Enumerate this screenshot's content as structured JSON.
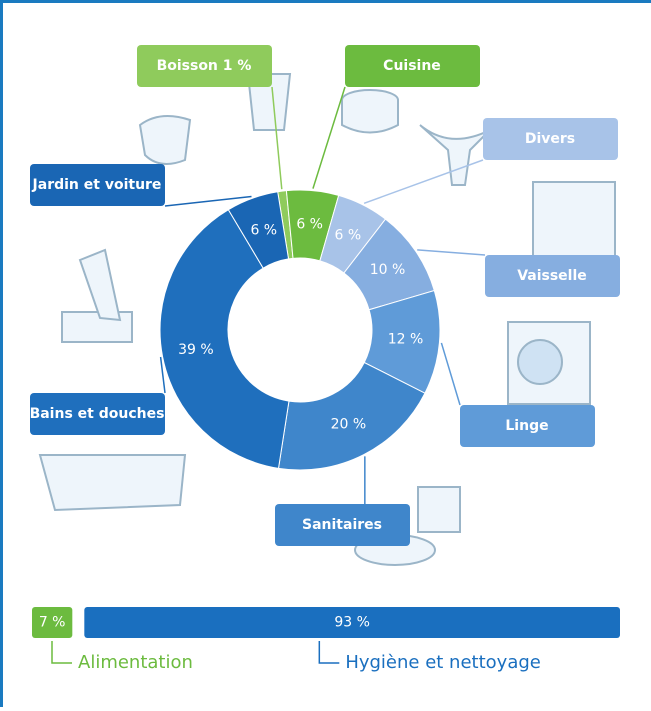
{
  "chart_data": [
    {
      "type": "donut",
      "categories": [
        "Boisson 1 %",
        "Cuisine",
        "Divers",
        "Vaisselle",
        "Linge",
        "Sanitaires",
        "Bains et douches",
        "Jardin et voiture"
      ],
      "values": [
        1,
        6,
        6,
        10,
        12,
        20,
        39,
        6
      ],
      "value_labels": [
        null,
        "6 %",
        "6 %",
        "10 %",
        "12 %",
        "20 %",
        "39 %",
        "6 %"
      ],
      "colors": [
        "#8fcb5c",
        "#6cbb3f",
        "#a8c3e8",
        "#86aee0",
        "#5f9bd8",
        "#3f86cb",
        "#1f6fbd",
        "#1a66b4"
      ]
    },
    {
      "type": "stacked-bar",
      "categories": [
        "Alimentation",
        "Hygiène et nettoyage"
      ],
      "values": [
        7,
        93
      ],
      "value_labels": [
        "7 %",
        "93 %"
      ],
      "colors": [
        "#6cbb3f",
        "#1a6fbf"
      ]
    }
  ]
}
